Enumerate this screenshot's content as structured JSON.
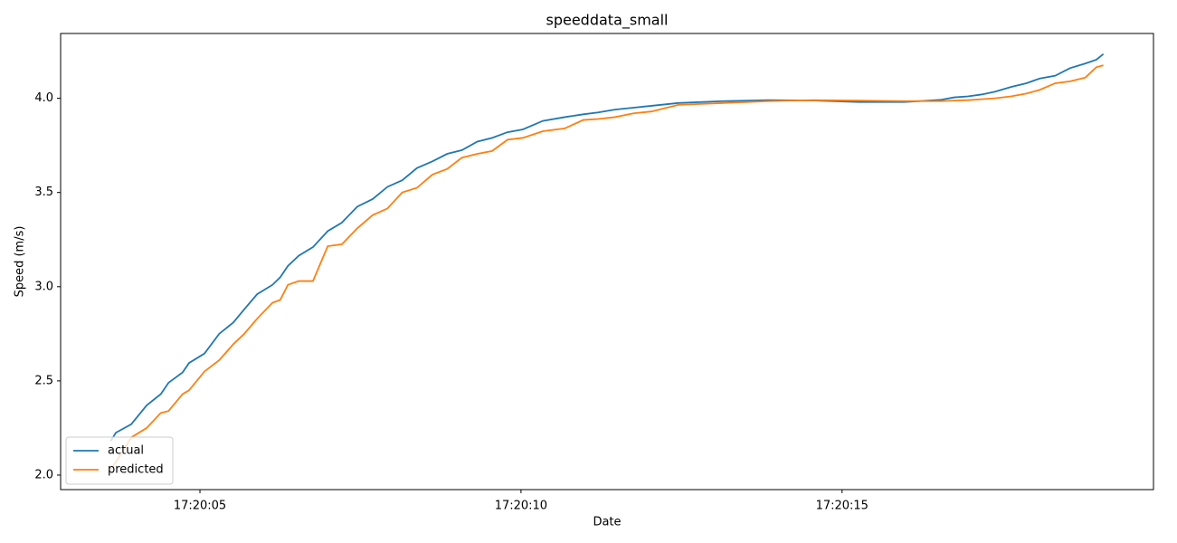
{
  "chart_data": {
    "type": "line",
    "title": "speeddata_small",
    "xlabel": "Date",
    "ylabel": "Speed (m/s)",
    "x": [
      3.61,
      3.69,
      3.93,
      4.17,
      4.39,
      4.51,
      4.73,
      4.83,
      5.07,
      5.3,
      5.52,
      5.69,
      5.89,
      6.13,
      6.25,
      6.37,
      6.54,
      6.76,
      6.99,
      7.21,
      7.45,
      7.69,
      7.92,
      8.15,
      8.38,
      8.62,
      8.85,
      9.08,
      9.32,
      9.55,
      9.79,
      10.03,
      10.34,
      10.68,
      10.97,
      11.2,
      11.46,
      11.75,
      12.03,
      12.45,
      13.15,
      13.86,
      14.56,
      15.27,
      15.97,
      16.54,
      16.75,
      16.96,
      17.17,
      17.38,
      17.63,
      17.87,
      18.08,
      18.32,
      18.55,
      18.79,
      18.96,
      19.07
    ],
    "series": [
      {
        "name": "actual",
        "color": "#1f77b4",
        "values": [
          2.18,
          2.225,
          2.27,
          2.37,
          2.43,
          2.49,
          2.545,
          2.595,
          2.645,
          2.75,
          2.81,
          2.88,
          2.96,
          3.01,
          3.05,
          3.11,
          3.165,
          3.21,
          3.295,
          3.34,
          3.425,
          3.465,
          3.53,
          3.565,
          3.63,
          3.665,
          3.705,
          3.725,
          3.77,
          3.79,
          3.82,
          3.835,
          3.88,
          3.9,
          3.915,
          3.925,
          3.94,
          3.95,
          3.96,
          3.975,
          3.985,
          3.99,
          3.988,
          3.98,
          3.98,
          3.992,
          4.005,
          4.01,
          4.02,
          4.035,
          4.06,
          4.08,
          4.105,
          4.12,
          4.16,
          4.185,
          4.205,
          4.235
        ]
      },
      {
        "name": "predicted",
        "color": "#ff7f0e",
        "values": [
          2.03,
          2.07,
          2.2,
          2.25,
          2.33,
          2.34,
          2.43,
          2.45,
          2.55,
          2.61,
          2.695,
          2.75,
          2.83,
          2.915,
          2.93,
          3.01,
          3.03,
          3.03,
          3.215,
          3.225,
          3.31,
          3.38,
          3.415,
          3.5,
          3.525,
          3.595,
          3.625,
          3.685,
          3.705,
          3.72,
          3.78,
          3.79,
          3.825,
          3.84,
          3.885,
          3.89,
          3.9,
          3.92,
          3.93,
          3.965,
          3.975,
          3.985,
          3.99,
          3.988,
          3.985,
          3.985,
          3.988,
          3.99,
          3.995,
          4.0,
          4.01,
          4.025,
          4.045,
          4.08,
          4.09,
          4.11,
          4.165,
          4.175
        ]
      }
    ],
    "xlim": [
      2.83,
      19.85
    ],
    "ylim": [
      1.923,
      4.344
    ],
    "xticks": [
      {
        "value": 5,
        "label": "17:20:05"
      },
      {
        "value": 10,
        "label": "17:20:10"
      },
      {
        "value": 15,
        "label": "17:20:15"
      }
    ],
    "yticks": [
      {
        "value": 2,
        "label": "2.0"
      },
      {
        "value": 2.5,
        "label": "2.5"
      },
      {
        "value": 3,
        "label": "3.0"
      },
      {
        "value": 3.5,
        "label": "3.5"
      },
      {
        "value": 4,
        "label": "4.0"
      }
    ],
    "grid": false,
    "legend": "lower left"
  }
}
